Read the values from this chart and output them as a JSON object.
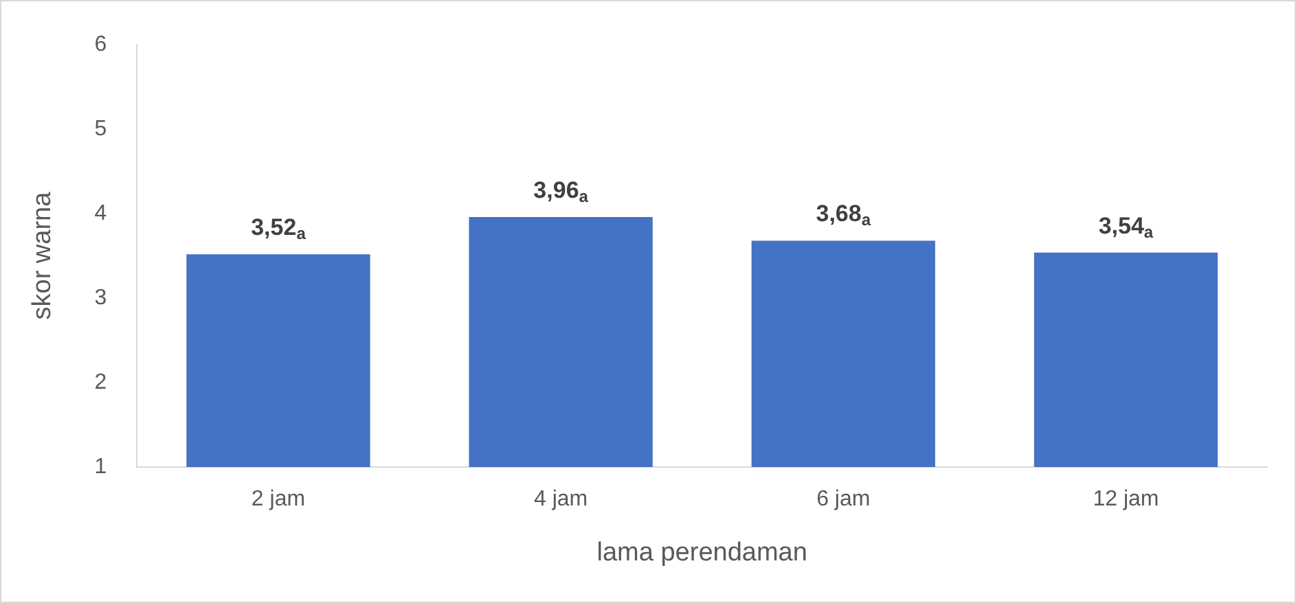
{
  "chart_data": {
    "type": "bar",
    "xlabel": "lama perendaman",
    "ylabel": "skor warna",
    "categories": [
      "2 jam",
      "4 jam",
      "6 jam",
      "12 jam"
    ],
    "values": [
      3.52,
      3.96,
      3.68,
      3.54
    ],
    "value_labels": [
      "3,52$_{a}$",
      "3,96$_{a}$",
      "3,68$_{a}$",
      "3,54$_{a}$"
    ],
    "color": "#4472c4",
    "ylim": [
      1,
      6
    ],
    "yticks": [
      1,
      2,
      3,
      4,
      5,
      6
    ],
    "grid": false,
    "legend": false
  }
}
